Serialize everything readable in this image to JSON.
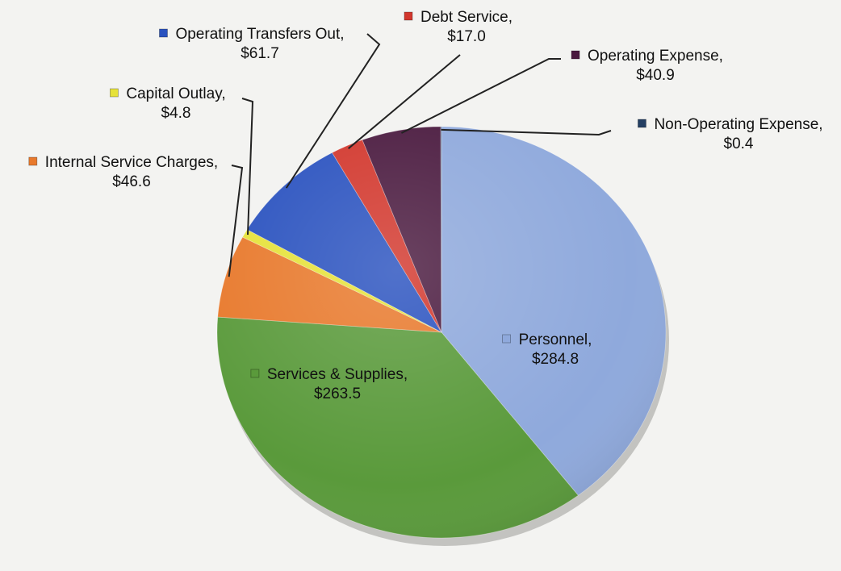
{
  "chart_data": {
    "type": "pie",
    "title": "",
    "currency_prefix": "$",
    "slices": [
      {
        "label": "Personnel",
        "value": 284.8,
        "color": "#8fa9dc"
      },
      {
        "label": "Services & Supplies",
        "value": 263.5,
        "color": "#5a9a3b"
      },
      {
        "label": "Internal Service Charges",
        "value": 46.6,
        "color": "#e8792c"
      },
      {
        "label": "Capital Outlay",
        "value": 4.8,
        "color": "#e6e23a"
      },
      {
        "label": "Operating Transfers Out",
        "value": 61.7,
        "color": "#2a52bf"
      },
      {
        "label": "Debt Service",
        "value": 17.0,
        "color": "#d2372d"
      },
      {
        "label": "Operating Expense",
        "value": 40.9,
        "color": "#4a1a3f"
      },
      {
        "label": "Non-Operating Expense",
        "value": 0.4,
        "color": "#243f63"
      }
    ],
    "legend": "data labels with leader lines"
  }
}
